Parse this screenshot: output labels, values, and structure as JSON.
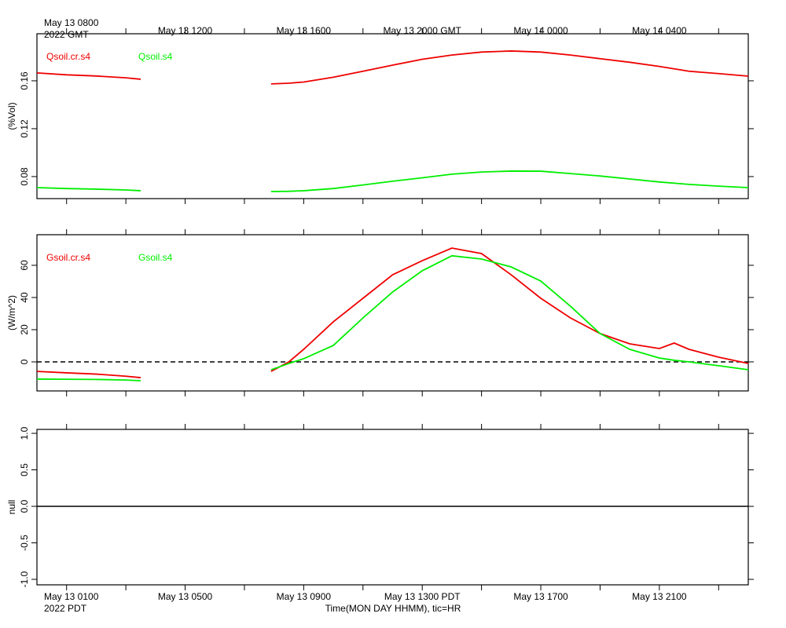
{
  "chart_data": [
    {
      "type": "line",
      "ylabel": "(%Vol)",
      "xlim": [
        0,
        24
      ],
      "ylim": [
        0.0616,
        0.1993
      ],
      "yticks": [
        0.08,
        0.12,
        0.16
      ],
      "top_xticks": [
        {
          "value": 1,
          "label": "May 13 0800"
        },
        {
          "value": 5,
          "label": "May 13 1200"
        },
        {
          "value": 9,
          "label": "May 13 1600"
        },
        {
          "value": 13,
          "label": "May 13 2000 GMT"
        },
        {
          "value": 17,
          "label": "May 14 0000"
        },
        {
          "value": 21,
          "label": "May 14 0400"
        }
      ],
      "top_xlabel_note": "2022 GMT",
      "x": [
        0,
        1,
        2,
        3,
        3.5,
        5.5,
        7.9,
        8.5,
        9,
        10,
        11,
        12,
        13,
        14,
        15,
        16,
        17,
        18,
        19,
        20,
        21,
        22,
        23,
        24
      ],
      "series": [
        {
          "name": "Qsoil.cr.s4",
          "color": "#ee0000",
          "values": [
            0.1666,
            0.165,
            0.164,
            0.1625,
            0.1613,
            null,
            0.1574,
            0.158,
            0.159,
            0.163,
            0.168,
            0.1731,
            0.178,
            0.1815,
            0.184,
            0.1849,
            0.184,
            0.1815,
            0.1785,
            0.1755,
            0.172,
            0.168,
            0.166,
            0.1639
          ]
        },
        {
          "name": "Qsoil.s4",
          "color": "#00ee00",
          "values": [
            0.0708,
            0.07,
            0.0695,
            0.0688,
            0.0682,
            null,
            0.0675,
            0.0677,
            0.0682,
            0.07,
            0.073,
            0.0761,
            0.079,
            0.082,
            0.0838,
            0.0846,
            0.0845,
            0.0825,
            0.0805,
            0.078,
            0.0755,
            0.0735,
            0.072,
            0.0708
          ]
        }
      ]
    },
    {
      "type": "line",
      "ylabel": "(W/m^2)",
      "xlim": [
        0,
        24
      ],
      "ylim": [
        -18.05,
        79
      ],
      "yticks": [
        0,
        20,
        40,
        60
      ],
      "reference_line": {
        "value": 0,
        "style": "dashed"
      },
      "x": [
        0,
        1,
        2,
        3,
        3.5,
        5.5,
        7.9,
        8.5,
        9,
        10,
        11,
        12,
        13,
        14,
        15,
        16,
        17,
        18,
        19,
        20,
        21,
        21.5,
        22,
        23,
        24
      ],
      "series": [
        {
          "name": "Gsoil.cr.s4",
          "color": "#ee0000",
          "values": [
            -5.9,
            -6.8,
            -7.6,
            -8.9,
            -9.8,
            null,
            -5.9,
            0,
            7.8,
            24.9,
            39.5,
            54.1,
            62.9,
            70.7,
            67.3,
            54.1,
            39.5,
            27.3,
            17.6,
            11.2,
            8.3,
            11.7,
            7.8,
            2.9,
            -1.0
          ]
        },
        {
          "name": "Gsoil.s4",
          "color": "#00ee00",
          "values": [
            -10.7,
            -10.8,
            -10.9,
            -11.3,
            -11.7,
            null,
            -4.9,
            -1.0,
            2.0,
            10.2,
            27.3,
            43.4,
            56.6,
            65.9,
            63.9,
            59.0,
            50.2,
            34.6,
            17.6,
            7.8,
            2.4,
            1.0,
            0,
            -2.4,
            -4.9
          ]
        }
      ]
    },
    {
      "type": "line",
      "ylabel": "null",
      "xlim": [
        0,
        24
      ],
      "ylim": [
        -1.075,
        1.054
      ],
      "yticks": [
        {
          "value": -1,
          "label": "-1.0"
        },
        {
          "value": -0.5,
          "label": "-0.5"
        },
        {
          "value": 0,
          "label": "0.0"
        },
        {
          "value": 0.5,
          "label": "0.5"
        },
        {
          "value": 1,
          "label": "1.0"
        }
      ],
      "reference_line": {
        "value": 0,
        "style": "solid"
      },
      "xticks": [
        {
          "value": 1,
          "label": "May 13 0100"
        },
        {
          "value": 5,
          "label": "May 13 0500"
        },
        {
          "value": 9,
          "label": "May 13 0900"
        },
        {
          "value": 13,
          "label": "May 13 1300 PDT"
        },
        {
          "value": 17,
          "label": "May 13 1700"
        },
        {
          "value": 21,
          "label": "May 13 2100"
        }
      ],
      "minor_xticks": [
        3,
        7,
        11,
        15,
        19,
        23
      ],
      "xlabel_note": "2022 PDT",
      "xlabel": "Time(MON DAY HHMM), tic=HR",
      "x": [],
      "series": []
    }
  ]
}
